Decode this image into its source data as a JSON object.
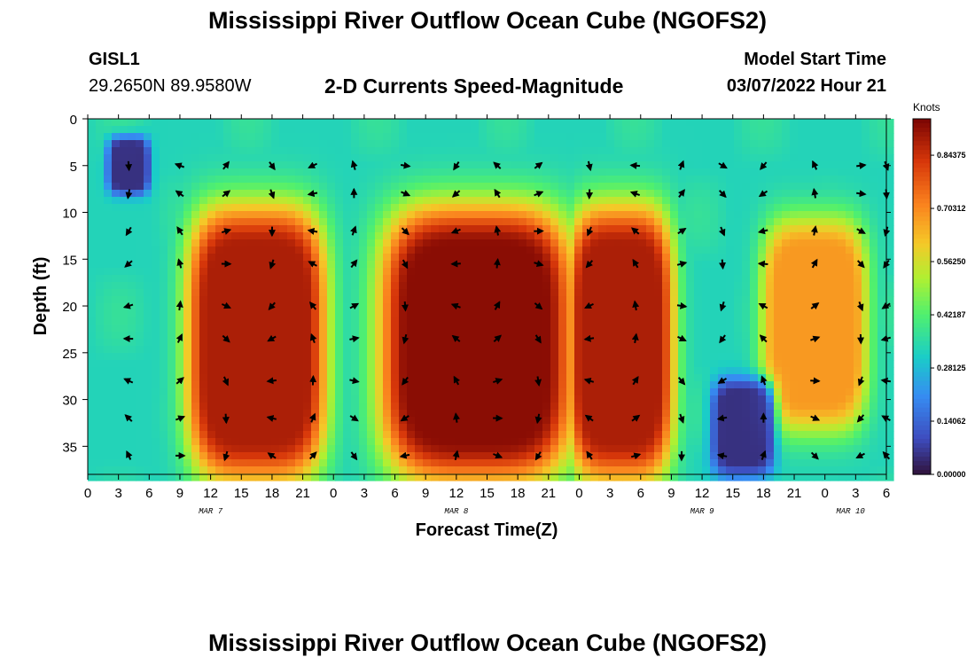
{
  "header": {
    "title": "Mississippi River Outflow Ocean Cube (NGOFS2)",
    "station_id": "GISL1",
    "coords": "29.2650N  89.9580W",
    "subtitle": "2-D Currents Speed-Magnitude",
    "model_start_label": "Model Start Time",
    "model_start_value": "03/07/2022 Hour 21"
  },
  "footer": {
    "title": "Mississippi River Outflow Ocean Cube (NGOFS2)"
  },
  "chart_data": {
    "type": "heatmap",
    "title": "2-D Currents Speed-Magnitude",
    "xlabel": "Forecast Time(Z)",
    "ylabel": "Depth (ft)",
    "x_hours_range": [
      0,
      78
    ],
    "ylim": [
      0,
      38
    ],
    "x_tick_labels": [
      "0",
      "3",
      "6",
      "9",
      "12",
      "15",
      "18",
      "21",
      "0",
      "3",
      "6",
      "9",
      "12",
      "15",
      "18",
      "21",
      "0",
      "3",
      "6",
      "9",
      "12",
      "15",
      "18",
      "21",
      "0",
      "3",
      "6"
    ],
    "date_labels": [
      {
        "label": "MAR 7",
        "hour": 12
      },
      {
        "label": "MAR 8",
        "hour": 36
      },
      {
        "label": "MAR 9",
        "hour": 60
      },
      {
        "label": "MAR 10",
        "hour": 74.5
      }
    ],
    "y_ticks": [
      0,
      5,
      10,
      15,
      20,
      25,
      30,
      35
    ],
    "colorbar": {
      "units": "Knots",
      "min": 0,
      "max": 0.94,
      "ticks": [
        "0.84375",
        "0.70312",
        "0.56250",
        "0.42187",
        "0.28125",
        "0.14062",
        "0.00000"
      ]
    },
    "speed_features_knots": [
      {
        "hour_range": [
          10,
          23
        ],
        "depth_range": [
          10,
          38
        ],
        "peak": 0.88
      },
      {
        "hour_range": [
          29,
          47
        ],
        "depth_range": [
          10,
          38
        ],
        "peak": 0.92
      },
      {
        "hour_range": [
          47,
          57
        ],
        "depth_range": [
          10,
          38
        ],
        "peak": 0.88
      },
      {
        "hour_range": [
          66,
          76
        ],
        "depth_range": [
          11,
          33
        ],
        "peak": 0.68
      },
      {
        "hour_range": [
          2,
          6
        ],
        "depth_range": [
          2,
          8
        ],
        "peak": 0.0
      },
      {
        "hour_range": [
          61,
          67
        ],
        "depth_range": [
          28,
          38
        ],
        "peak": 0.0
      }
    ],
    "vector_arrows": {
      "hours": [
        4,
        9,
        13.5,
        18,
        22,
        26,
        31,
        36,
        40,
        44,
        49,
        53.5,
        58,
        62,
        66,
        71,
        75.5,
        78
      ],
      "depths": [
        5,
        8,
        12,
        15.5,
        20,
        23.5,
        28,
        32,
        36
      ],
      "pattern": "mixed directions following tidal current reversal"
    }
  }
}
